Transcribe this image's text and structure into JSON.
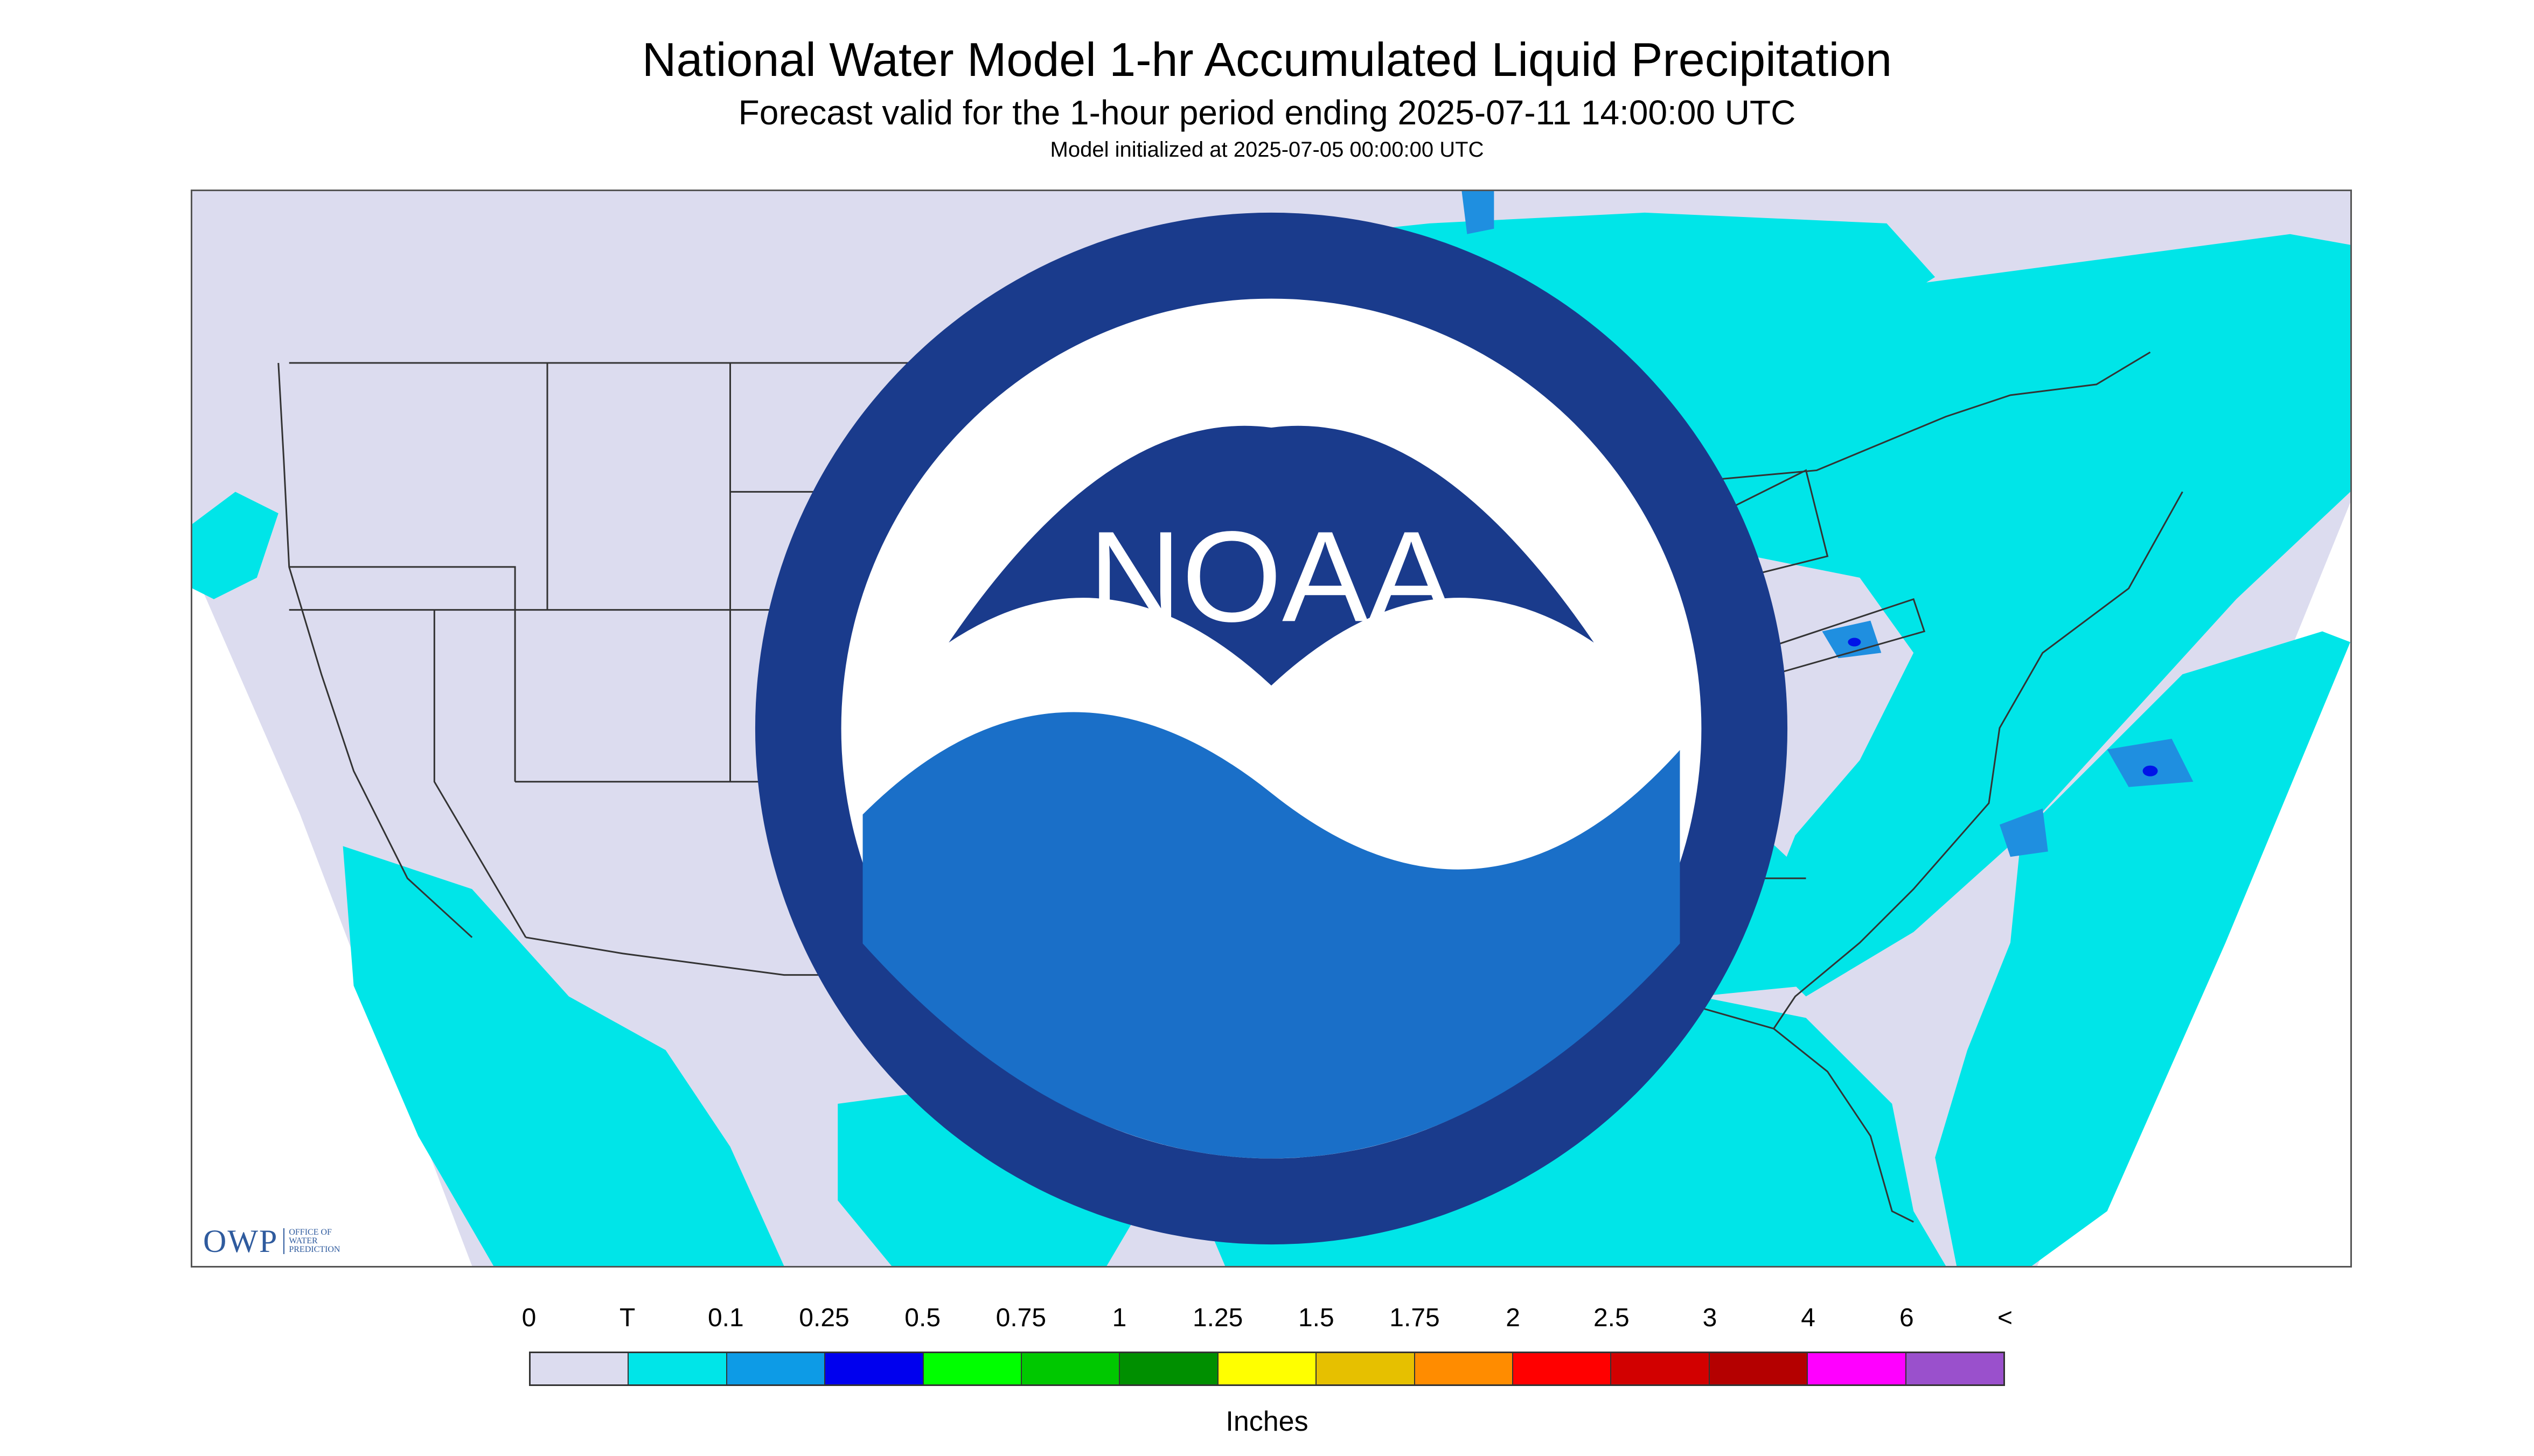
{
  "header": {
    "title": "National Water Model 1-hr Accumulated Liquid Precipitation",
    "subtitle": "Forecast valid for the 1-hour period ending 2025-07-11 14:00:00 UTC",
    "init_line": "Model initialized at 2025-07-05 00:00:00 UTC"
  },
  "map": {
    "background_color": "#dcdcef",
    "light_precip_color": "#00e5e8",
    "moderate_precip_color": "#1f8fe0",
    "heavy_precip_color": "#0014e8",
    "border_color": "#333333"
  },
  "logos": {
    "owp_mark": "OWP",
    "owp_text": "OFFICE OF\nWATER\nPREDICTION",
    "noaa_text": "NOAA"
  },
  "legend": {
    "labels": [
      "0",
      "T",
      "0.1",
      "0.25",
      "0.5",
      "0.75",
      "1",
      "1.25",
      "1.5",
      "1.75",
      "2",
      "2.5",
      "3",
      "4",
      "6",
      "<"
    ],
    "colors": [
      "#dcdcef",
      "#00e5e8",
      "#0d9be6",
      "#0000ee",
      "#00ff00",
      "#00c800",
      "#008f00",
      "#ffff00",
      "#e6c000",
      "#ff8c00",
      "#ff0000",
      "#d20000",
      "#b40000",
      "#ff00ff",
      "#9a50cc"
    ],
    "units": "Inches"
  }
}
